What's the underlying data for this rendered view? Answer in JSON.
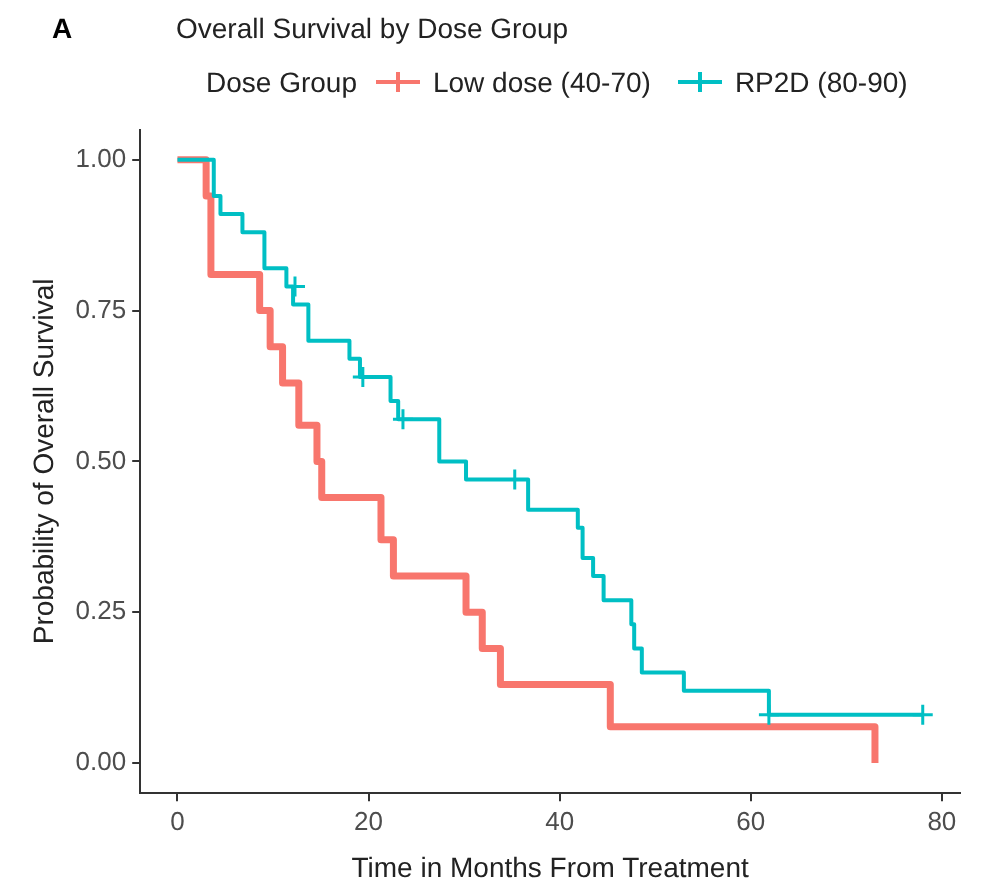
{
  "chart_data": {
    "type": "step",
    "title": "Overall Survival by Dose Group",
    "xlabel": "Time in Months From Treatment",
    "ylabel": "Probability of Overall Survival",
    "legend_title": "Dose Group",
    "annotations": [
      "A"
    ],
    "xlim": [
      -3.9,
      81.9
    ],
    "xticks": [
      0,
      20,
      40,
      60,
      80
    ],
    "ylim": [
      -0.05,
      1.05
    ],
    "yticks": [
      {
        "value": 0,
        "label": "0.00"
      },
      {
        "value": 0.25,
        "label": "0.25"
      },
      {
        "value": 0.5,
        "label": "0.50"
      },
      {
        "value": 0.75,
        "label": "0.75"
      },
      {
        "value": 1,
        "label": "1.00"
      }
    ],
    "grid": false,
    "legend": "top",
    "line_style": "solid",
    "series": [
      {
        "name": "Low dose (40-70)",
        "color": "#f8766d",
        "x": [
          0,
          3.0,
          3.5,
          8.6,
          9.7,
          11.0,
          12.7,
          14.6,
          15.1,
          21.3,
          22.6,
          30.2,
          31.9,
          33.8,
          45.3,
          73
        ],
        "values": [
          1,
          0.94,
          0.81,
          0.75,
          0.69,
          0.63,
          0.56,
          0.5,
          0.44,
          0.37,
          0.31,
          0.25,
          0.19,
          0.13,
          0.06,
          0
        ]
      },
      {
        "name": "RP2D (80-90)",
        "color": "#00bfc4",
        "x": [
          0,
          3.8,
          4.5,
          6.8,
          9.1,
          11.4,
          12.1,
          13.7,
          18.0,
          19.1,
          22.3,
          23.1,
          27.4,
          30.2,
          36.7,
          41.9,
          42.4,
          43.5,
          44.6,
          47.5,
          47.8,
          48.6,
          53.0,
          61.9,
          78
        ],
        "values": [
          1,
          0.94,
          0.91,
          0.88,
          0.82,
          0.79,
          0.76,
          0.7,
          0.67,
          0.64,
          0.6,
          0.57,
          0.5,
          0.47,
          0.42,
          0.39,
          0.34,
          0.31,
          0.27,
          0.23,
          0.19,
          0.15,
          0.12,
          0.08,
          0.08
        ]
      },
      {
        "type": "scatter",
        "marker": "cross",
        "color": "#00bfc4",
        "x": [
          12.3,
          19.4,
          23.6,
          35.3,
          61.9,
          78
        ],
        "values": [
          0.79,
          0.64,
          0.57,
          0.47,
          0.08,
          0.08
        ]
      }
    ]
  }
}
